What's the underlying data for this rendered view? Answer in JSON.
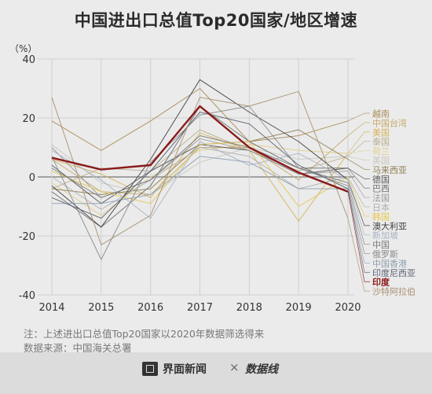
{
  "title": "中国进出口总值Top20国家/地区增速",
  "footer": {
    "note": "注：上述进出口总值Top20国家以2020年数据筛选得来",
    "source": "数据来源：中国海关总署",
    "brand_left": "界面新闻",
    "separator": "×",
    "brand_right": "数据线"
  },
  "chart_data": {
    "type": "line",
    "x": [
      "2014",
      "2015",
      "2016",
      "2017",
      "2018",
      "2019",
      "2020"
    ],
    "ylabel": "（%）",
    "ylim": [
      -40,
      40
    ],
    "yticks": [
      "40",
      "20",
      "0",
      "-20",
      "-40"
    ],
    "grid": true,
    "legend_position": "right",
    "series": [
      {
        "name": "越南",
        "color": "#a88c55",
        "values": [
          19,
          9,
          19,
          30,
          12,
          14,
          19
        ]
      },
      {
        "name": "中国台湾",
        "color": "#c7a96b",
        "values": [
          6,
          -5,
          -6,
          10,
          10,
          -1,
          14
        ]
      },
      {
        "name": "美国",
        "color": "#d4b35a",
        "values": [
          6,
          1,
          -7,
          15,
          9,
          -15,
          8
        ]
      },
      {
        "name": "泰国",
        "color": "#b8ae8e",
        "values": [
          -4,
          3,
          2,
          16,
          9,
          2,
          7
        ]
      },
      {
        "name": "荷兰",
        "color": "#e0cf8a",
        "values": [
          -2,
          -13,
          0,
          9,
          11,
          9,
          8
        ]
      },
      {
        "name": "英国",
        "color": "#c8c6bd",
        "values": [
          11,
          -2,
          -6,
          5,
          10,
          6,
          7
        ]
      },
      {
        "name": "马来西亚",
        "color": "#8e7d52",
        "values": [
          -4,
          -6,
          -4,
          11,
          12,
          16,
          6
        ]
      },
      {
        "name": "德国",
        "color": "#555555",
        "values": [
          4,
          -9,
          2,
          11,
          9,
          1,
          3
        ]
      },
      {
        "name": "巴西",
        "color": "#6e6e6e",
        "values": [
          -5,
          -17,
          -3,
          24,
          12,
          3,
          3
        ]
      },
      {
        "name": "法国",
        "color": "#9a9a9a",
        "values": [
          10,
          -7,
          -1,
          13,
          9,
          1,
          2
        ]
      },
      {
        "name": "日本",
        "color": "#b0b0b0",
        "values": [
          0,
          -11,
          -1,
          10,
          7,
          -4,
          0
        ]
      },
      {
        "name": "韩国",
        "color": "#e6c84a",
        "values": [
          2,
          -5,
          -9,
          11,
          12,
          -10,
          0
        ]
      },
      {
        "name": "澳大利亚",
        "color": "#3e3e3e",
        "values": [
          -3,
          -17,
          6,
          33,
          22,
          12,
          -1
        ]
      },
      {
        "name": "新加坡",
        "color": "#a8b4c4",
        "values": [
          9,
          -1,
          -14,
          12,
          4,
          8,
          -1
        ]
      },
      {
        "name": "中国",
        "color": "#7a7a7a",
        "values": [
          3,
          -7,
          -1,
          14,
          10,
          3,
          -2
        ]
      },
      {
        "name": "俄罗斯",
        "color": "#8a8a8a",
        "values": [
          7,
          -28,
          5,
          21,
          24,
          3,
          -3
        ]
      },
      {
        "name": "中国香港",
        "color": "#8fa0b0",
        "values": [
          -9,
          -9,
          -6,
          7,
          5,
          -4,
          -4
        ]
      },
      {
        "name": "印度尼西亚",
        "color": "#5a6070",
        "values": [
          -7,
          -14,
          2,
          22,
          18,
          4,
          -4
        ]
      },
      {
        "name": "印度",
        "color": "#8b1a1a",
        "values": [
          6.5,
          2.5,
          4,
          24,
          10,
          1.5,
          -5
        ]
      },
      {
        "name": "沙特阿拉伯",
        "color": "#a89070",
        "values": [
          27,
          -23,
          -13,
          27,
          24,
          29,
          -14
        ]
      }
    ]
  }
}
